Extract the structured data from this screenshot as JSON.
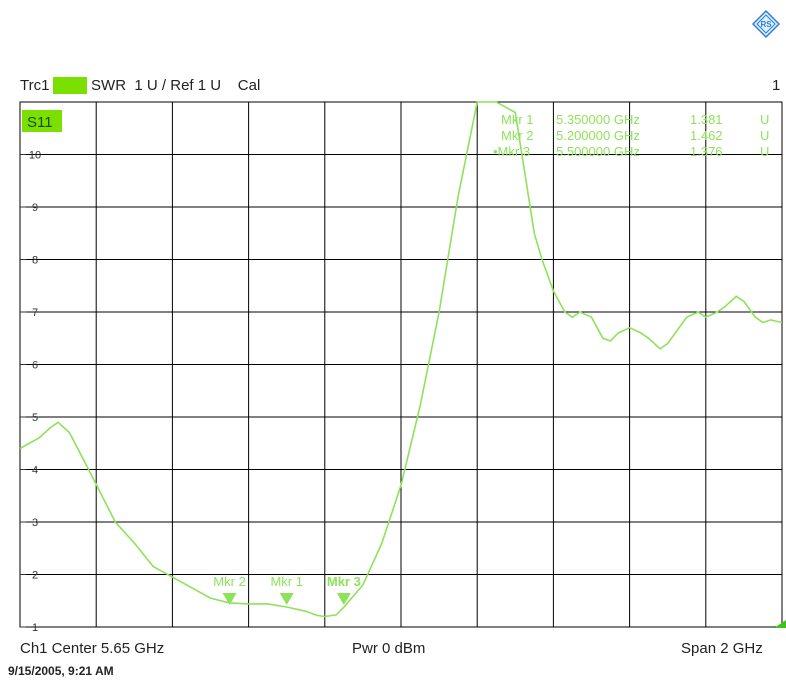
{
  "header": {
    "trace_name": "Trc1",
    "trace_param": "S11",
    "format": "SWR",
    "scale": "1 U /",
    "ref": "Ref 1 U",
    "cal": "Cal",
    "channel_index": "1"
  },
  "footer": {
    "center": "Ch1  Center  5.65 GHz",
    "power": "Pwr  0 dBm",
    "span": "Span  2 GHz"
  },
  "timestamp": "9/15/2005, 9:21 AM",
  "plot_label": "S11",
  "colors": {
    "trace": "#8ee25a",
    "grid": "#000000",
    "badge": "#7be000"
  },
  "chart_data": {
    "type": "line",
    "x_range_ghz": [
      4.65,
      6.65
    ],
    "ylim": [
      1,
      11
    ],
    "y_ticks": [
      "10",
      "9",
      "8",
      "7",
      "6",
      "5",
      "4",
      "3",
      "2",
      "1"
    ],
    "grid": true,
    "series": [
      {
        "x": [
          4.65,
          4.7,
          4.73,
          4.75,
          4.78,
          4.83,
          4.9,
          4.95,
          5.0,
          5.05,
          5.1,
          5.15,
          5.2,
          5.25,
          5.3,
          5.35,
          5.4,
          5.43,
          5.45,
          5.48,
          5.5,
          5.55,
          5.6,
          5.65,
          5.7,
          5.75,
          5.8,
          5.85,
          5.89,
          5.9,
          5.95,
          6.0,
          6.02,
          6.05,
          6.08,
          6.1,
          6.12,
          6.15,
          6.18,
          6.2,
          6.22,
          6.25,
          6.28,
          6.3,
          6.33,
          6.35,
          6.38,
          6.4,
          6.43,
          6.45,
          6.48,
          6.5,
          6.53,
          6.55,
          6.58,
          6.6,
          6.62,
          6.65
        ],
        "y": [
          4.4,
          4.6,
          4.8,
          4.9,
          4.7,
          4.0,
          3.0,
          2.6,
          2.15,
          1.95,
          1.75,
          1.55,
          1.46,
          1.44,
          1.44,
          1.38,
          1.3,
          1.22,
          1.2,
          1.23,
          1.376,
          1.8,
          2.6,
          3.7,
          5.2,
          7.0,
          9.2,
          11.5,
          12.5,
          12.0,
          10.8,
          8.5,
          8.0,
          7.4,
          7.0,
          6.9,
          7.0,
          6.9,
          6.5,
          6.45,
          6.6,
          6.7,
          6.6,
          6.5,
          6.3,
          6.4,
          6.7,
          6.9,
          7.0,
          6.9,
          7.0,
          7.1,
          7.3,
          7.2,
          6.9,
          6.8,
          6.85,
          6.8
        ]
      }
    ],
    "markers": [
      {
        "name": "Mkr 1",
        "freq": "5.350000 GHz",
        "value": "1.381",
        "unit": "U",
        "x": 5.35,
        "y": 1.381,
        "active": false
      },
      {
        "name": "Mkr 2",
        "freq": "5.200000 GHz",
        "value": "1.462",
        "unit": "U",
        "x": 5.2,
        "y": 1.462,
        "active": false
      },
      {
        "name": "Mkr 3",
        "freq": "5.500000 GHz",
        "value": "1.376",
        "unit": "U",
        "x": 5.5,
        "y": 1.376,
        "active": true
      }
    ]
  }
}
